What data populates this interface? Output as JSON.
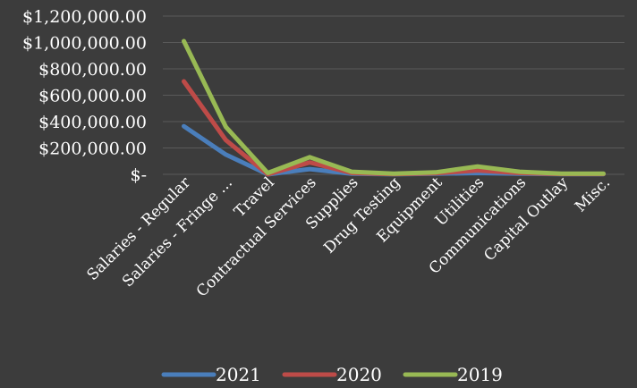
{
  "chart_data": {
    "type": "line",
    "categories": [
      "Salaries - Regular",
      "Salaries - Fringe ...",
      "Travel",
      "Contractual Services",
      "Supplies",
      "Drug Testing",
      "Equipment",
      "Utilities",
      "Communications",
      "Capital Outlay",
      "Misc."
    ],
    "series": [
      {
        "name": "2021",
        "color": "#4a7ebb",
        "values": [
          365000,
          150000,
          0,
          40000,
          5000,
          1000,
          5000,
          10000,
          5000,
          2000,
          2000
        ]
      },
      {
        "name": "2020",
        "color": "#be4b48",
        "values": [
          705000,
          260000,
          0,
          90000,
          10000,
          2000,
          8000,
          30000,
          10000,
          3000,
          3000
        ]
      },
      {
        "name": "2019",
        "color": "#98b954",
        "values": [
          1010000,
          360000,
          10000,
          130000,
          20000,
          5000,
          15000,
          60000,
          20000,
          5000,
          5000
        ]
      }
    ],
    "y_ticks": [
      "$1,200,000.00",
      "$1,000,000.00",
      "$800,000.00",
      "$600,000.00",
      "$400,000.00",
      "$200,000.00",
      "$-"
    ],
    "y_tick_values": [
      1200000,
      1000000,
      800000,
      600000,
      400000,
      200000,
      0
    ],
    "ylim": [
      0,
      1200000
    ],
    "title": "",
    "xlabel": "",
    "ylabel": "",
    "grid": true,
    "legend_position": "bottom"
  }
}
